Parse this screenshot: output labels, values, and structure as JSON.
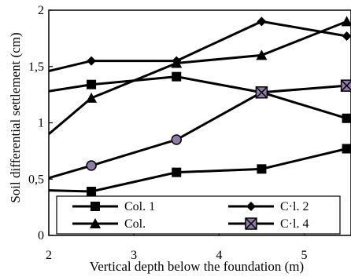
{
  "chart_data": {
    "type": "line",
    "xlabel": "Vertical depth below the foundation (m)",
    "ylabel": "Soil differential settlement (cm)",
    "xlim": [
      2,
      5.55
    ],
    "ylim": [
      0,
      2
    ],
    "x_ticks": [
      2,
      3,
      4,
      5
    ],
    "y_ticks": [
      0,
      0.5,
      1,
      1.5,
      2
    ],
    "x_tick_labels": [
      "2",
      "3",
      "4",
      "5"
    ],
    "y_tick_labels": [
      "0",
      "0,5",
      "1",
      "1,5",
      "2"
    ],
    "grid": false,
    "legend_placement": "bottom",
    "series": [
      {
        "name": "Col. 1",
        "marker": "square",
        "x": [
          2,
          2.5,
          3.5,
          4.5,
          5.5
        ],
        "y": [
          1.28,
          1.34,
          1.41,
          1.27,
          1.04
        ]
      },
      {
        "name": "C·l. 2",
        "marker": "diamond",
        "x": [
          2,
          2.5,
          3.5,
          4.5,
          5.5
        ],
        "y": [
          1.46,
          1.55,
          1.55,
          1.9,
          1.77
        ]
      },
      {
        "name": "Col.",
        "marker": "triangle",
        "x": [
          2,
          2.5,
          3.5,
          4.5,
          5.5
        ],
        "y": [
          0.9,
          1.22,
          1.53,
          1.6,
          1.9
        ]
      },
      {
        "name": "C·l. 4",
        "marker": "x-square",
        "x": [
          2,
          2.5,
          3.5,
          4.5,
          5.5
        ],
        "y": [
          0.51,
          0.62,
          0.85,
          1.27,
          1.33
        ]
      },
      {
        "name": "",
        "marker": "square",
        "x": [
          2,
          2.5,
          3.5,
          4.5,
          5.5
        ],
        "y": [
          0.4,
          0.39,
          0.56,
          0.59,
          0.77
        ]
      }
    ]
  }
}
